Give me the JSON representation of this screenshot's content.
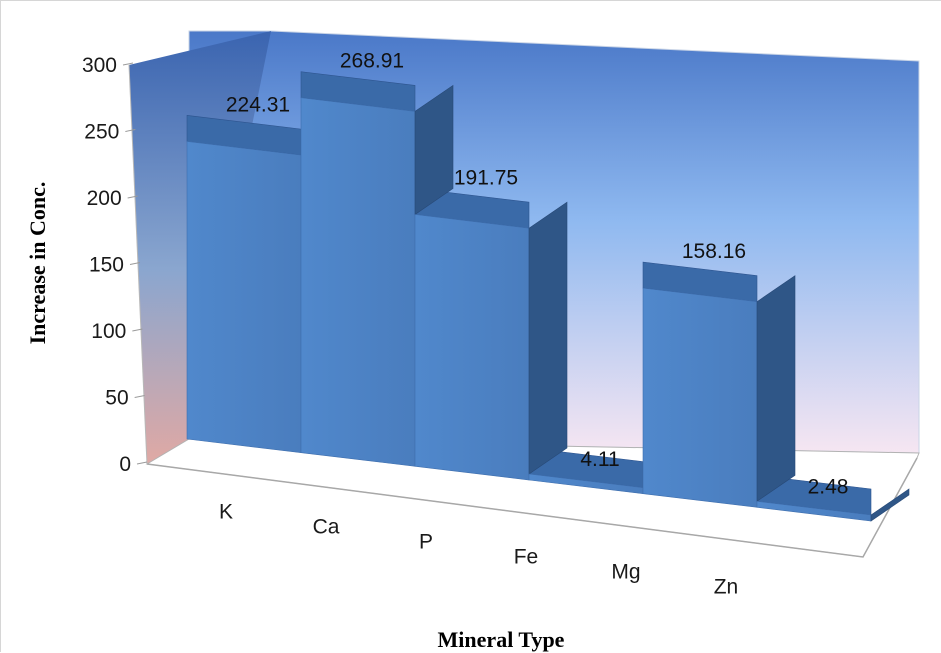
{
  "chart_data": {
    "type": "bar",
    "categories": [
      "K",
      "Ca",
      "P",
      "Fe",
      "Mg",
      "Zn"
    ],
    "values": [
      224.31,
      268.91,
      191.75,
      4.11,
      158.16,
      2.48
    ],
    "data_labels": [
      "224.31",
      "268.91",
      "191.75",
      "4.11",
      "158.16",
      "2.48"
    ],
    "title": "",
    "xlabel": "Mineral  Type",
    "ylabel": "Increase in Conc.",
    "ylim": [
      0,
      300
    ],
    "yticks": [
      0,
      50,
      100,
      150,
      200,
      250,
      300
    ],
    "grid": false,
    "legend": "none",
    "style": "3d-column",
    "colors": {
      "bar_front": "#4f82c4",
      "bar_top": "#3a6aa8",
      "bar_side": "#2f5687",
      "wall_top": "#4a78c8",
      "wall_bottom": "#f6e6f2",
      "floor": "#ffffff"
    }
  }
}
